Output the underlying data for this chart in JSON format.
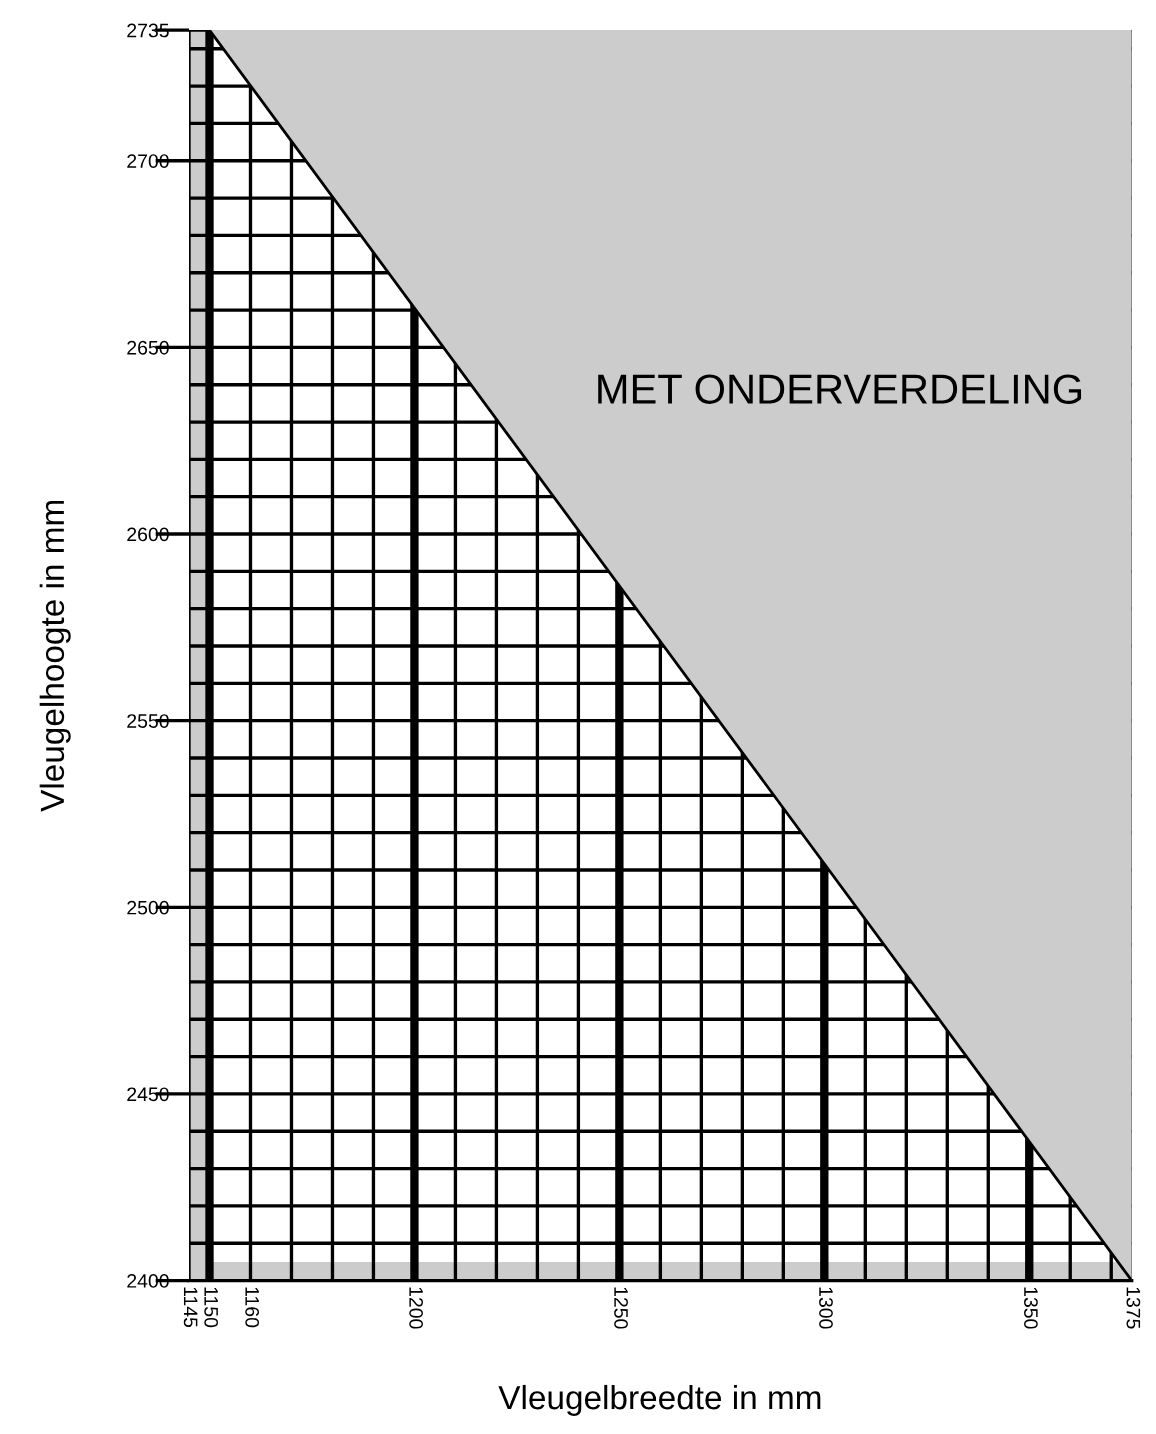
{
  "chart_data": {
    "type": "area",
    "xlabel": "Vleugelbreedte in mm",
    "ylabel": "Vleugelhoogte in mm",
    "annotations": [
      "MET ONDERVERDELING"
    ],
    "series": [
      {
        "color": "#cccccc",
        "x": [
          1150,
          1375
        ],
        "values": [
          2735,
          2400
        ]
      }
    ],
    "xlim": [
      1145,
      1375
    ],
    "ylim": [
      2400,
      2735
    ],
    "xticks": [
      1145,
      1150,
      1160,
      {
        "value": 1170,
        "label": null
      },
      {
        "value": 1180,
        "label": null
      },
      {
        "value": 1190,
        "label": null
      },
      1200,
      {
        "value": 1210,
        "label": null
      },
      {
        "value": 1220,
        "label": null
      },
      {
        "value": 1230,
        "label": null
      },
      {
        "value": 1240,
        "label": null
      },
      1250,
      {
        "value": 1260,
        "label": null
      },
      {
        "value": 1270,
        "label": null
      },
      {
        "value": 1280,
        "label": null
      },
      {
        "value": 1290,
        "label": null
      },
      1300,
      {
        "value": 1310,
        "label": null
      },
      {
        "value": 1320,
        "label": null
      },
      {
        "value": 1330,
        "label": null
      },
      {
        "value": 1340,
        "label": null
      },
      1350,
      {
        "value": 1360,
        "label": null
      },
      {
        "value": 1370,
        "label": null
      },
      1375
    ],
    "yticks": [
      2400,
      {
        "value": 2410,
        "label": null
      },
      {
        "value": 2420,
        "label": null
      },
      {
        "value": 2430,
        "label": null
      },
      {
        "value": 2440,
        "label": null
      },
      2450,
      {
        "value": 2460,
        "label": null
      },
      {
        "value": 2470,
        "label": null
      },
      {
        "value": 2480,
        "label": null
      },
      {
        "value": 2490,
        "label": null
      },
      2500,
      {
        "value": 2510,
        "label": null
      },
      {
        "value": 2520,
        "label": null
      },
      {
        "value": 2530,
        "label": null
      },
      {
        "value": 2540,
        "label": null
      },
      2550,
      {
        "value": 2560,
        "label": null
      },
      {
        "value": 2570,
        "label": null
      },
      {
        "value": 2580,
        "label": null
      },
      {
        "value": 2590,
        "label": null
      },
      2600,
      {
        "value": 2610,
        "label": null
      },
      {
        "value": 2620,
        "label": null
      },
      {
        "value": 2630,
        "label": null
      },
      {
        "value": 2640,
        "label": null
      },
      2650,
      {
        "value": 2660,
        "label": null
      },
      {
        "value": 2670,
        "label": null
      },
      {
        "value": 2680,
        "label": null
      },
      {
        "value": 2690,
        "label": null
      },
      2700,
      {
        "value": 2710,
        "label": null
      },
      {
        "value": 2720,
        "label": null
      },
      {
        "value": 2730,
        "label": null
      },
      2735
    ],
    "bands": [
      {
        "axis": "x",
        "from": 1145,
        "to": 1150,
        "color": "#cccccc"
      },
      {
        "axis": "y",
        "from": 2400,
        "to": 2405,
        "color": "#cccccc"
      }
    ],
    "grid": true
  }
}
